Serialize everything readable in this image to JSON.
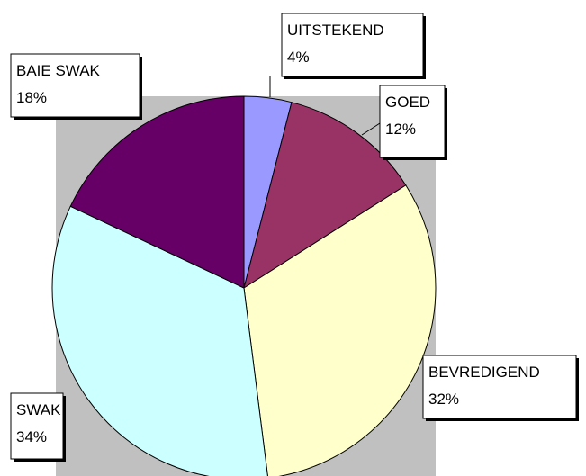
{
  "chart_data": {
    "type": "pie",
    "categories": [
      "UITSTEKEND",
      "GOED",
      "BEVREDIGEND",
      "SWAK",
      "BAIE SWAK"
    ],
    "values": [
      4,
      12,
      32,
      34,
      18
    ],
    "value_labels": [
      "4%",
      "12%",
      "32%",
      "34%",
      "18%"
    ],
    "colors": [
      "#9999ff",
      "#993366",
      "#ffffcc",
      "#ccffff",
      "#660066"
    ]
  }
}
